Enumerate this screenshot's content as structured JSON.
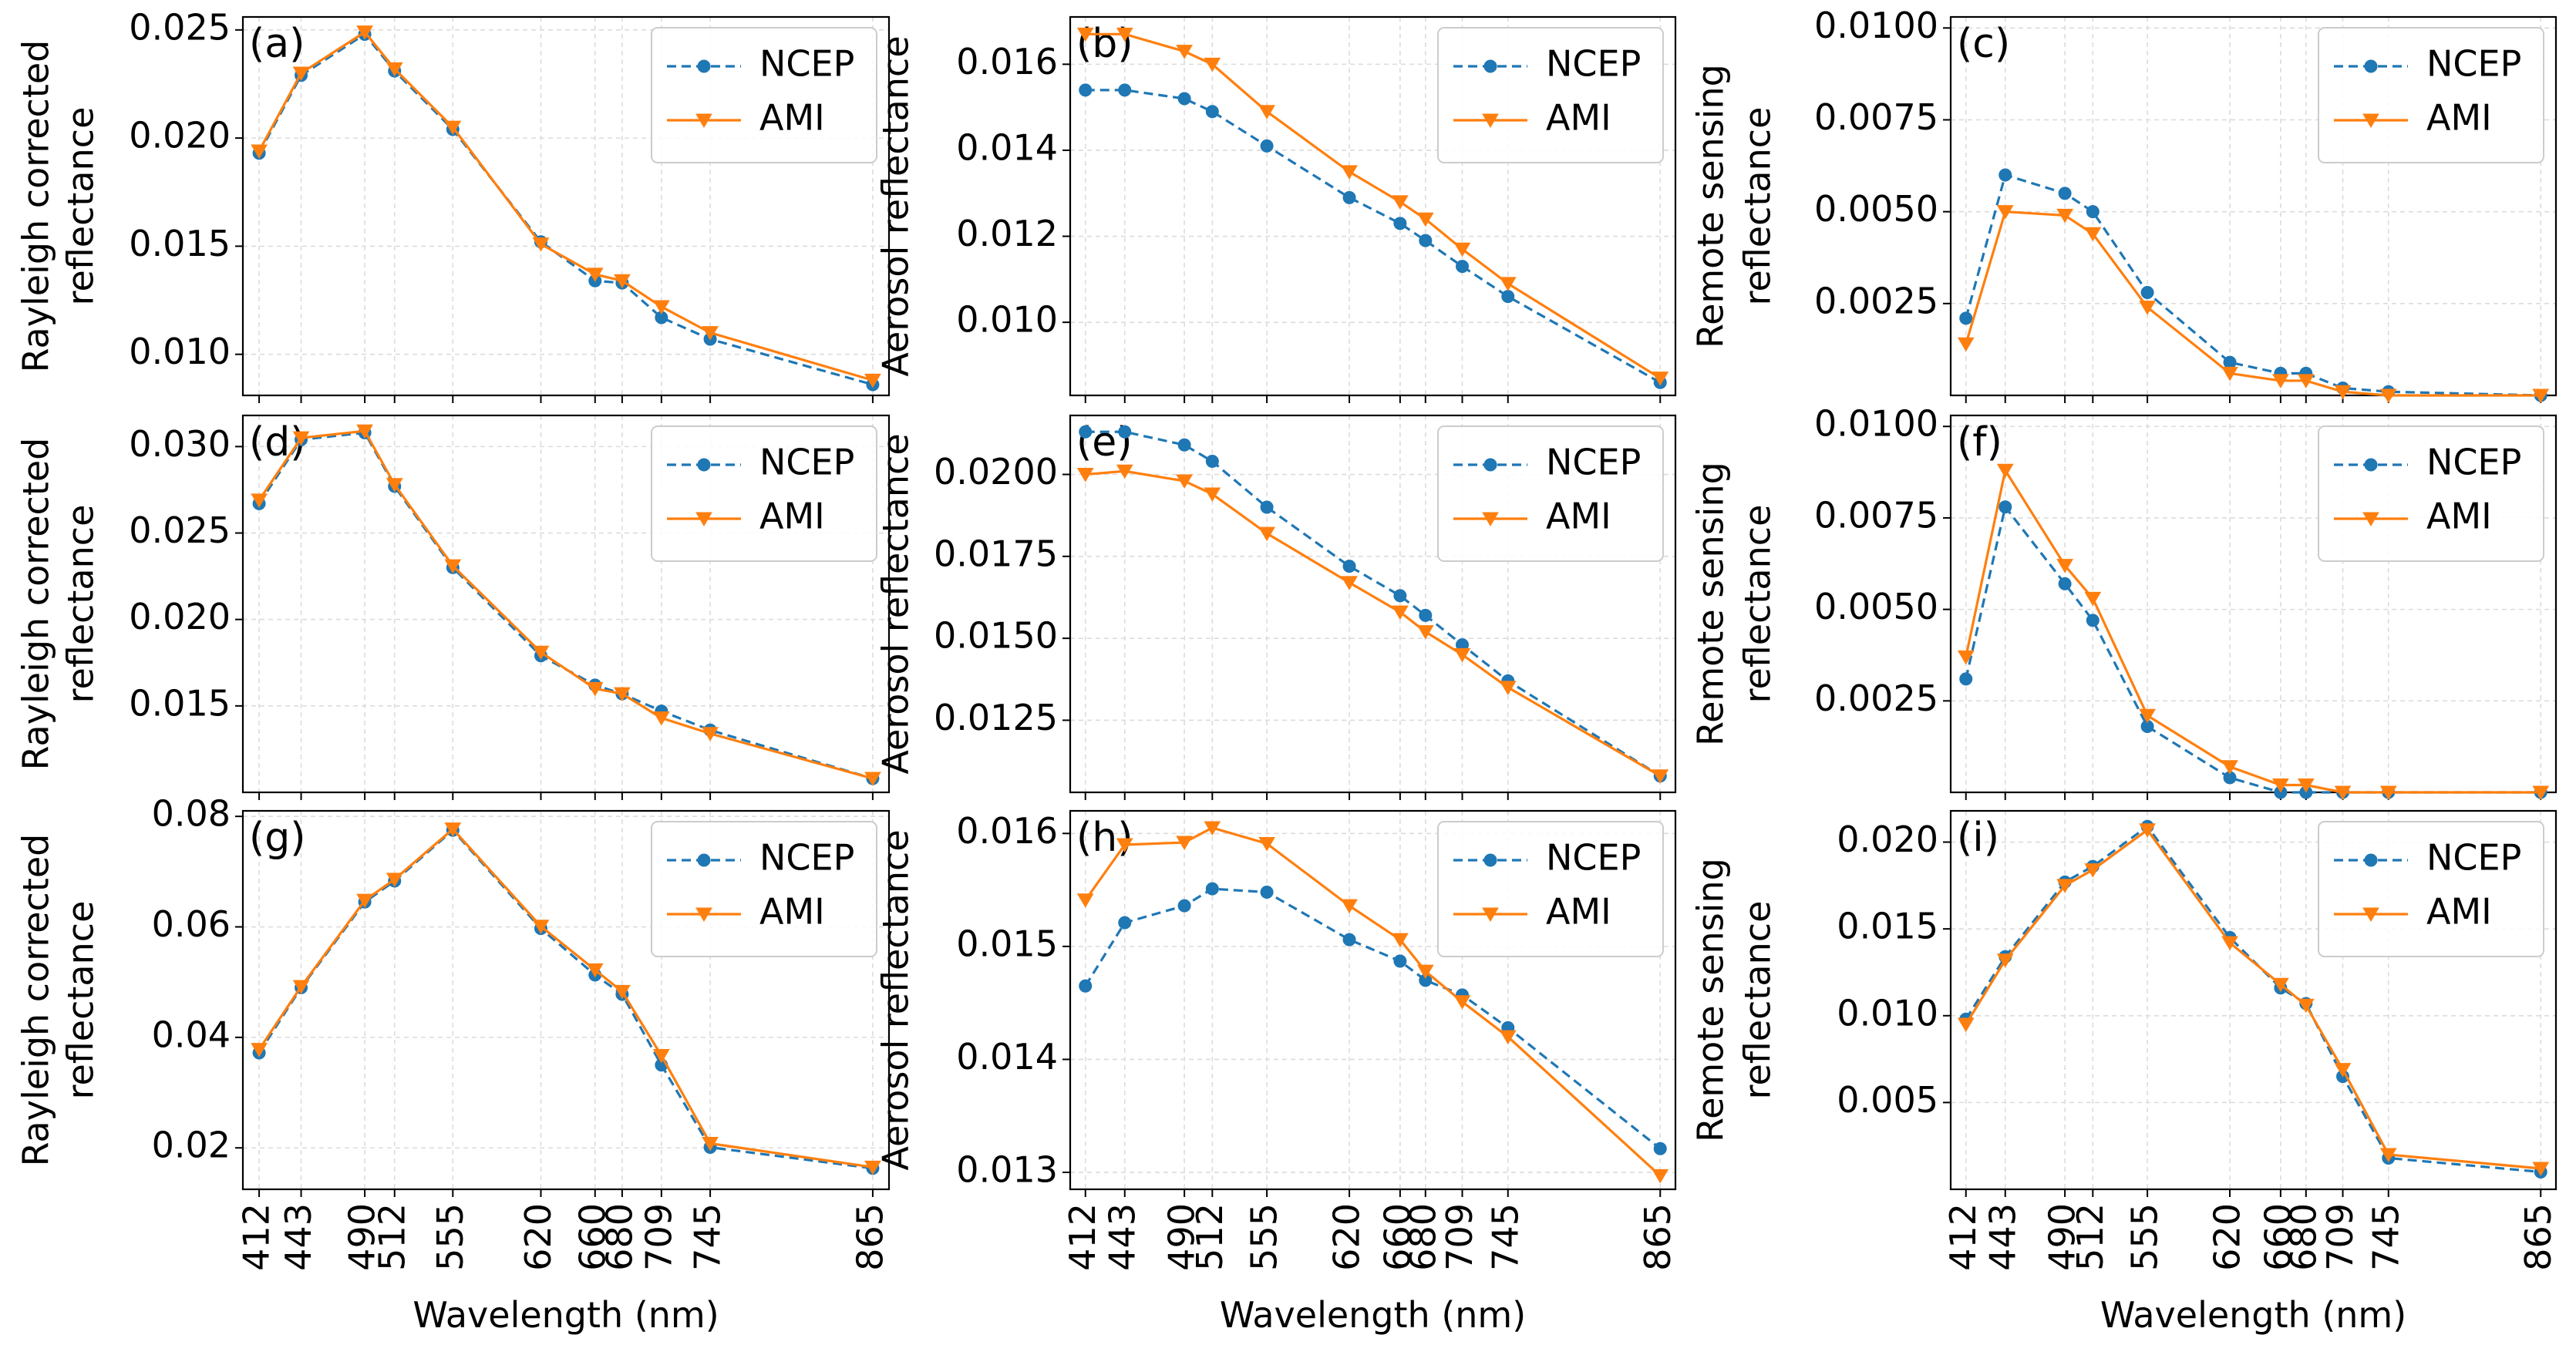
{
  "figure": {
    "xlabel": "Wavelength (nm)",
    "colors": {
      "NCEP": "#1f77b4",
      "AMI": "#ff7f0e"
    }
  },
  "chart_data": [
    {
      "type": "line",
      "panel": "(a)",
      "ylabel": [
        "Rayleigh corrected",
        "reflectance"
      ],
      "x": [
        412,
        443,
        490,
        512,
        555,
        620,
        660,
        680,
        709,
        745,
        865
      ],
      "xticks": [
        "412",
        "443",
        "490",
        "512",
        "555",
        "620",
        "660",
        "680",
        "709",
        "745",
        "865"
      ],
      "xlim": [
        400,
        877
      ],
      "ylim": [
        0.0081,
        0.0256
      ],
      "yticks": [
        0.01,
        0.015,
        0.02,
        0.025
      ],
      "ytick_labels": [
        "0.010",
        "0.015",
        "0.020",
        "0.025"
      ],
      "legend": "top-right",
      "series": [
        {
          "name": "NCEP",
          "style": "dashed",
          "marker": "circle",
          "values": [
            0.0193,
            0.0229,
            0.0248,
            0.0231,
            0.0204,
            0.0152,
            0.0134,
            0.0133,
            0.0117,
            0.0107,
            0.0086
          ]
        },
        {
          "name": "AMI",
          "style": "solid",
          "marker": "triangle-down",
          "values": [
            0.0194,
            0.023,
            0.0249,
            0.0232,
            0.0205,
            0.0151,
            0.0137,
            0.0134,
            0.0122,
            0.011,
            0.0088
          ]
        }
      ]
    },
    {
      "type": "line",
      "panel": "(b)",
      "ylabel": [
        "Aerosol reflectance"
      ],
      "x": [
        412,
        443,
        490,
        512,
        555,
        620,
        660,
        680,
        709,
        745,
        865
      ],
      "xticks": [
        "412",
        "443",
        "490",
        "512",
        "555",
        "620",
        "660",
        "680",
        "709",
        "745",
        "865"
      ],
      "xlim": [
        400,
        877
      ],
      "ylim": [
        0.0083,
        0.0171
      ],
      "yticks": [
        0.01,
        0.012,
        0.014,
        0.016
      ],
      "ytick_labels": [
        "0.010",
        "0.012",
        "0.014",
        "0.016"
      ],
      "legend": "top-right",
      "series": [
        {
          "name": "NCEP",
          "style": "dashed",
          "marker": "circle",
          "values": [
            0.0154,
            0.0154,
            0.0152,
            0.0149,
            0.0141,
            0.0129,
            0.0123,
            0.0119,
            0.0113,
            0.0106,
            0.0086
          ]
        },
        {
          "name": "AMI",
          "style": "solid",
          "marker": "triangle-down",
          "values": [
            0.0167,
            0.0167,
            0.0163,
            0.016,
            0.0149,
            0.0135,
            0.0128,
            0.0124,
            0.0117,
            0.0109,
            0.0087
          ]
        }
      ]
    },
    {
      "type": "line",
      "panel": "(c)",
      "ylabel": [
        "Remote sensing",
        "reflectance"
      ],
      "x": [
        412,
        443,
        490,
        512,
        555,
        620,
        660,
        680,
        709,
        745,
        865
      ],
      "xticks": [
        "412",
        "443",
        "490",
        "512",
        "555",
        "620",
        "660",
        "680",
        "709",
        "745",
        "865"
      ],
      "xlim": [
        400,
        877
      ],
      "ylim": [
        0.0,
        0.0103
      ],
      "yticks": [
        0.0025,
        0.005,
        0.0075,
        0.01
      ],
      "ytick_labels": [
        "0.0025",
        "0.0050",
        "0.0075",
        "0.0100"
      ],
      "legend": "top-right",
      "series": [
        {
          "name": "NCEP",
          "style": "dashed",
          "marker": "circle",
          "values": [
            0.0021,
            0.006,
            0.0055,
            0.005,
            0.0028,
            0.0009,
            0.0006,
            0.0006,
            0.0002,
            0.0001,
            0.0
          ]
        },
        {
          "name": "AMI",
          "style": "solid",
          "marker": "triangle-down",
          "values": [
            0.0014,
            0.005,
            0.0049,
            0.0044,
            0.0024,
            0.0006,
            0.0004,
            0.0004,
            0.0001,
            0.0,
            0.0
          ]
        }
      ]
    },
    {
      "type": "line",
      "panel": "(d)",
      "ylabel": [
        "Rayleigh corrected",
        "reflectance"
      ],
      "x": [
        412,
        443,
        490,
        512,
        555,
        620,
        660,
        680,
        709,
        745,
        865
      ],
      "xticks": [
        "412",
        "443",
        "490",
        "512",
        "555",
        "620",
        "660",
        "680",
        "709",
        "745",
        "865"
      ],
      "xlim": [
        400,
        877
      ],
      "ylim": [
        0.01,
        0.0318
      ],
      "yticks": [
        0.015,
        0.02,
        0.025,
        0.03
      ],
      "ytick_labels": [
        "0.015",
        "0.020",
        "0.025",
        "0.030"
      ],
      "legend": "top-right",
      "series": [
        {
          "name": "NCEP",
          "style": "dashed",
          "marker": "circle",
          "values": [
            0.0267,
            0.0304,
            0.0308,
            0.0277,
            0.023,
            0.0179,
            0.0162,
            0.0157,
            0.0147,
            0.0136,
            0.0108
          ]
        },
        {
          "name": "AMI",
          "style": "solid",
          "marker": "triangle-down",
          "values": [
            0.0269,
            0.0305,
            0.0309,
            0.0278,
            0.0231,
            0.0181,
            0.016,
            0.0157,
            0.0143,
            0.0134,
            0.0108
          ]
        }
      ]
    },
    {
      "type": "line",
      "panel": "(e)",
      "ylabel": [
        "Aerosol reflectance"
      ],
      "x": [
        412,
        443,
        490,
        512,
        555,
        620,
        660,
        680,
        709,
        745,
        865
      ],
      "xticks": [
        "412",
        "443",
        "490",
        "512",
        "555",
        "620",
        "660",
        "680",
        "709",
        "745",
        "865"
      ],
      "xlim": [
        400,
        877
      ],
      "ylim": [
        0.0103,
        0.0218
      ],
      "yticks": [
        0.0125,
        0.015,
        0.0175,
        0.02
      ],
      "ytick_labels": [
        "0.0125",
        "0.0150",
        "0.0175",
        "0.0200"
      ],
      "legend": "top-right",
      "series": [
        {
          "name": "NCEP",
          "style": "dashed",
          "marker": "circle",
          "values": [
            0.0213,
            0.0213,
            0.0209,
            0.0204,
            0.019,
            0.0172,
            0.0163,
            0.0157,
            0.0148,
            0.0137,
            0.0108
          ]
        },
        {
          "name": "AMI",
          "style": "solid",
          "marker": "triangle-down",
          "values": [
            0.02,
            0.0201,
            0.0198,
            0.0194,
            0.0182,
            0.0167,
            0.0158,
            0.0152,
            0.0145,
            0.0135,
            0.0108
          ]
        }
      ]
    },
    {
      "type": "line",
      "panel": "(f)",
      "ylabel": [
        "Remote sensing",
        "reflectance"
      ],
      "x": [
        412,
        443,
        490,
        512,
        555,
        620,
        660,
        680,
        709,
        745,
        865
      ],
      "xticks": [
        "412",
        "443",
        "490",
        "512",
        "555",
        "620",
        "660",
        "680",
        "709",
        "745",
        "865"
      ],
      "xlim": [
        400,
        877
      ],
      "ylim": [
        0.0,
        0.0103
      ],
      "yticks": [
        0.0025,
        0.005,
        0.0075,
        0.01
      ],
      "ytick_labels": [
        "0.0025",
        "0.0050",
        "0.0075",
        "0.0100"
      ],
      "legend": "top-right",
      "series": [
        {
          "name": "NCEP",
          "style": "dashed",
          "marker": "circle",
          "values": [
            0.0031,
            0.0078,
            0.0057,
            0.0047,
            0.0018,
            0.0004,
            0.0,
            0.0,
            0.0,
            0.0,
            0.0
          ]
        },
        {
          "name": "AMI",
          "style": "solid",
          "marker": "triangle-down",
          "values": [
            0.0037,
            0.0088,
            0.0062,
            0.0053,
            0.0021,
            0.0007,
            0.0002,
            0.0002,
            0.0,
            0.0,
            0.0
          ]
        }
      ]
    },
    {
      "type": "line",
      "panel": "(g)",
      "ylabel": [
        "Rayleigh corrected",
        "reflectance"
      ],
      "x": [
        412,
        443,
        490,
        512,
        555,
        620,
        660,
        680,
        709,
        745,
        865
      ],
      "xticks": [
        "412",
        "443",
        "490",
        "512",
        "555",
        "620",
        "660",
        "680",
        "709",
        "745",
        "865"
      ],
      "xlim": [
        400,
        877
      ],
      "ylim": [
        0.0125,
        0.081
      ],
      "yticks": [
        0.02,
        0.04,
        0.06,
        0.08
      ],
      "ytick_labels": [
        "0.02",
        "0.04",
        "0.06",
        "0.08"
      ],
      "legend": "top-right",
      "series": [
        {
          "name": "NCEP",
          "style": "dashed",
          "marker": "circle",
          "values": [
            0.0372,
            0.049,
            0.0645,
            0.0683,
            0.0775,
            0.0597,
            0.0513,
            0.0478,
            0.035,
            0.0201,
            0.0163
          ]
        },
        {
          "name": "AMI",
          "style": "solid",
          "marker": "triangle-down",
          "values": [
            0.0378,
            0.0492,
            0.0648,
            0.0686,
            0.0777,
            0.0601,
            0.0522,
            0.0483,
            0.0367,
            0.0208,
            0.0165
          ]
        }
      ]
    },
    {
      "type": "line",
      "panel": "(h)",
      "ylabel": [
        "Aerosol reflectance"
      ],
      "x": [
        412,
        443,
        490,
        512,
        555,
        620,
        660,
        680,
        709,
        745,
        865
      ],
      "xticks": [
        "412",
        "443",
        "490",
        "512",
        "555",
        "620",
        "660",
        "680",
        "709",
        "745",
        "865"
      ],
      "xlim": [
        400,
        877
      ],
      "ylim": [
        0.01285,
        0.0162
      ],
      "yticks": [
        0.013,
        0.014,
        0.015,
        0.016
      ],
      "ytick_labels": [
        "0.013",
        "0.014",
        "0.015",
        "0.016"
      ],
      "legend": "top-right",
      "series": [
        {
          "name": "NCEP",
          "style": "dashed",
          "marker": "circle",
          "values": [
            0.01465,
            0.01521,
            0.01536,
            0.01551,
            0.01548,
            0.01506,
            0.01487,
            0.0147,
            0.01457,
            0.01428,
            0.01321
          ]
        },
        {
          "name": "AMI",
          "style": "solid",
          "marker": "triangle-down",
          "values": [
            0.01541,
            0.0159,
            0.01592,
            0.01605,
            0.01591,
            0.01536,
            0.01506,
            0.01478,
            0.01451,
            0.0142,
            0.01297
          ]
        }
      ]
    },
    {
      "type": "line",
      "panel": "(i)",
      "ylabel": [
        "Remote sensing",
        "reflectance"
      ],
      "x": [
        412,
        443,
        490,
        512,
        555,
        620,
        660,
        680,
        709,
        745,
        865
      ],
      "xticks": [
        "412",
        "443",
        "490",
        "512",
        "555",
        "620",
        "660",
        "680",
        "709",
        "745",
        "865"
      ],
      "xlim": [
        400,
        877
      ],
      "ylim": [
        0.0,
        0.0218
      ],
      "yticks": [
        0.005,
        0.01,
        0.015,
        0.02
      ],
      "ytick_labels": [
        "0.005",
        "0.010",
        "0.015",
        "0.020"
      ],
      "legend": "top-right",
      "series": [
        {
          "name": "NCEP",
          "style": "dashed",
          "marker": "circle",
          "values": [
            0.0098,
            0.0134,
            0.0177,
            0.0186,
            0.0209,
            0.0145,
            0.0116,
            0.0107,
            0.0065,
            0.0018,
            0.001
          ]
        },
        {
          "name": "AMI",
          "style": "solid",
          "marker": "triangle-down",
          "values": [
            0.0095,
            0.0132,
            0.0175,
            0.0184,
            0.0207,
            0.0142,
            0.0118,
            0.0106,
            0.0069,
            0.002,
            0.0012
          ]
        }
      ]
    }
  ]
}
